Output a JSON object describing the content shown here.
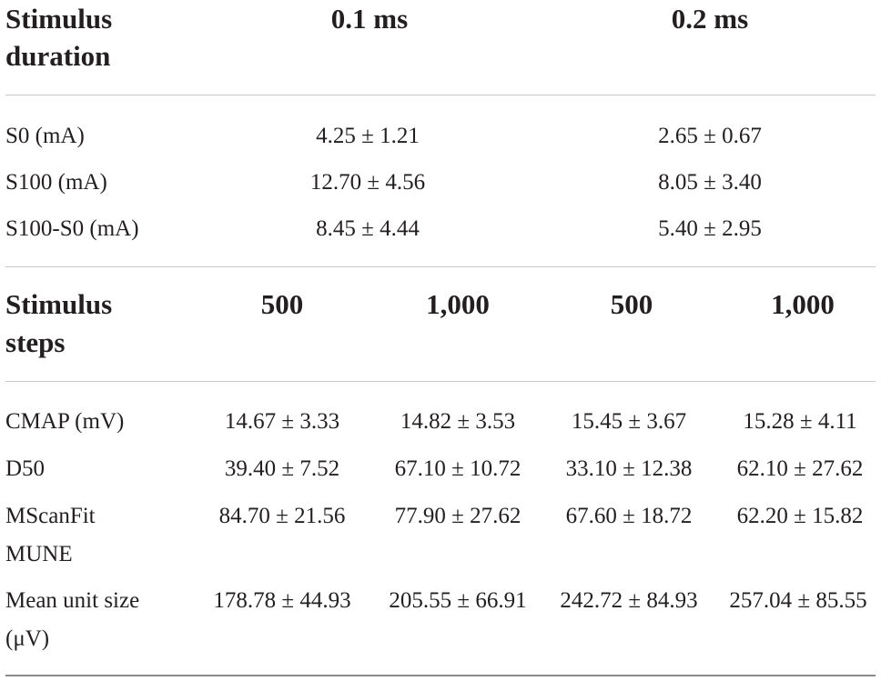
{
  "section1": {
    "header": {
      "label": "Stimulus duration",
      "label_line1": "Stimulus",
      "label_line2": "duration",
      "col1": "0.1 ms",
      "col2": "0.2 ms"
    },
    "rows": [
      {
        "label": "S0 (mA)",
        "v1": "4.25 ± 1.21",
        "v2": "2.65 ± 0.67"
      },
      {
        "label": "S100 (mA)",
        "v1": "12.70 ± 4.56",
        "v2": "8.05 ± 3.40"
      },
      {
        "label": "S100-S0 (mA)",
        "v1": "8.45 ± 4.44",
        "v2": "5.40 ± 2.95"
      }
    ]
  },
  "section2": {
    "header": {
      "label_line1": "Stimulus",
      "label_line2": "steps",
      "cols": [
        "500",
        "1,000",
        "500",
        "1,000"
      ]
    },
    "rows": [
      {
        "label_line1": "CMAP (mV)",
        "label_line2": "",
        "values": [
          "14.67 ± 3.33",
          "14.82 ± 3.53",
          "15.45 ± 3.67",
          "15.28 ± 4.11"
        ]
      },
      {
        "label_line1": "D50",
        "label_line2": "",
        "values": [
          "39.40 ± 7.52",
          "67.10 ± 10.72",
          "33.10 ± 12.38",
          "62.10 ± 27.62"
        ]
      },
      {
        "label_line1": "MScanFit",
        "label_line2": "MUNE",
        "values": [
          "84.70 ± 21.56",
          "77.90 ± 27.62",
          "67.60 ± 18.72",
          "62.20 ± 15.82"
        ]
      },
      {
        "label_line1": "Mean unit size",
        "label_line2": "(μV)",
        "values": [
          "178.78 ± 44.93",
          "205.55 ± 66.91",
          "242.72 ± 84.93",
          "257.04 ± 85.55"
        ]
      }
    ]
  }
}
